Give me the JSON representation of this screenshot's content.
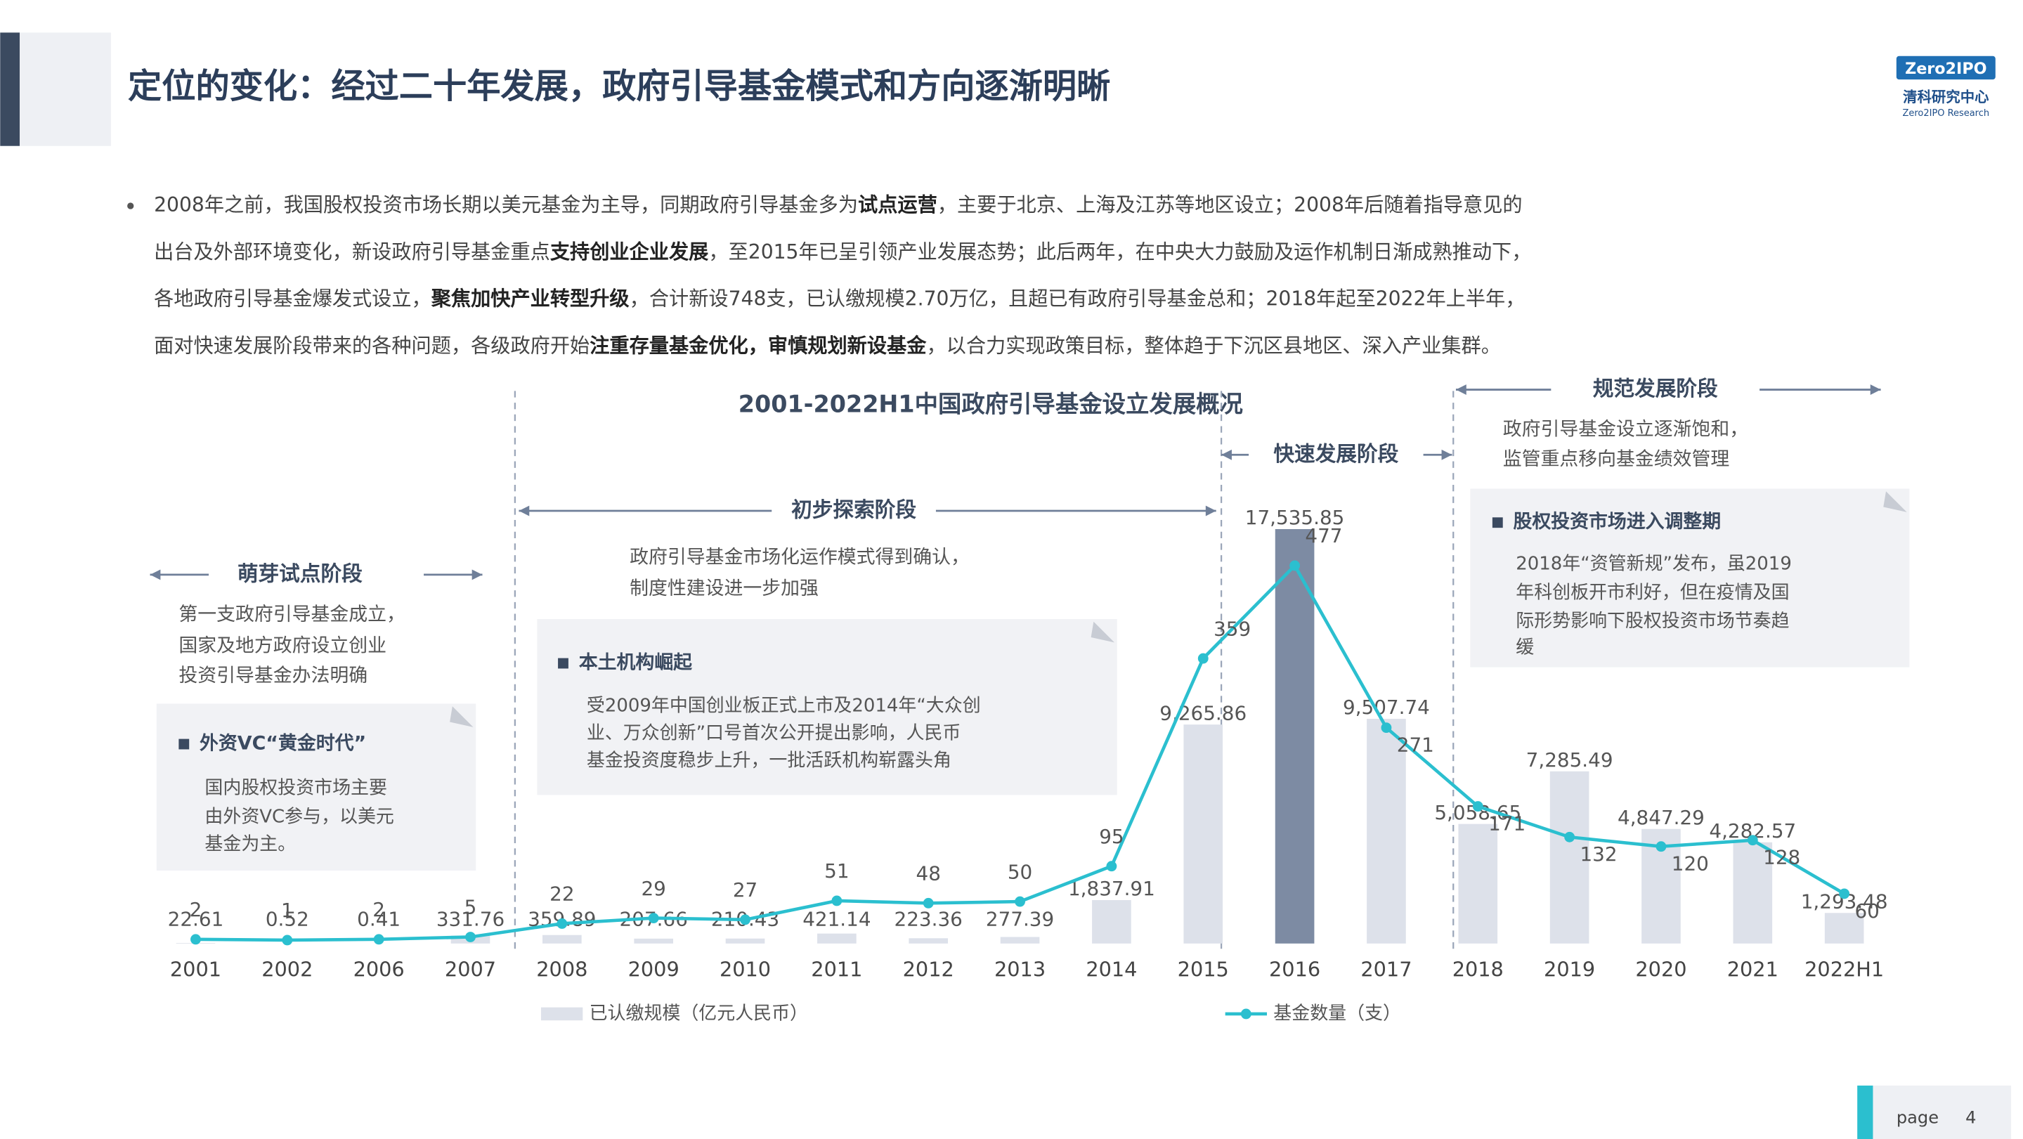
{
  "header": {
    "title": "定位的变化：经过二十年发展，政府引导基金模式和方向逐渐明晰"
  },
  "logo": {
    "brand": "Zero2IPO",
    "name": "清科研究中心",
    "sub": "Zero2IPO Research"
  },
  "bullet": {
    "lines": [
      [
        {
          "text": "2008年之前，我国股权投资市场长期以美元基金为主导，同期政府引导基金多为"
        },
        {
          "text": "试点运营",
          "bold": true
        },
        {
          "text": "，主要于北京、上海及江苏等地区设立；2008年后随着指导意见的"
        }
      ],
      [
        {
          "text": "出台及外部环境变化，新设政府引导基金重点"
        },
        {
          "text": "支持创业企业发展",
          "bold": true
        },
        {
          "text": "，至2015年已呈引领产业发展态势；此后两年，在中央大力鼓励及运作机制日渐成熟推动下，"
        }
      ],
      [
        {
          "text": "各地政府引导基金爆发式设立，"
        },
        {
          "text": "聚焦加快产业转型升级",
          "bold": true
        },
        {
          "text": "，合计新设748支，已认缴规模2.70万亿，且超已有政府引导基金总和；2018年起至2022年上半年，"
        }
      ],
      [
        {
          "text": "面对快速发展阶段带来的各种问题，各级政府开始"
        },
        {
          "text": "注重存量基金优化，审慎规划新设基金",
          "bold": true
        },
        {
          "text": "，以合力实现政策目标，整体趋于下沉区县地区、深入产业集群。"
        }
      ]
    ]
  },
  "stages": [
    {
      "label": "萌芽试点阶段",
      "desc": [
        "第一支政府引导基金成立，",
        "国家及地方政府设立创业",
        "投资引导基金办法明确"
      ],
      "box": {
        "title": "外资VC“黄金时代”",
        "lines": [
          "国内股权投资市场主要",
          "由外资VC参与，以美元",
          "基金为主。"
        ]
      }
    },
    {
      "label": "初步探索阶段",
      "desc": [
        "政府引导基金市场化运作模式得到确认，",
        "制度性建设进一步加强"
      ],
      "box": {
        "title": "本土机构崛起",
        "lines": [
          "受2009年中国创业板正式上市及2014年“大众创",
          "业、万众创新”口号首次公开提出影响，人民币",
          "基金投资度稳步上升，一批活跃机构崭露头角"
        ]
      }
    },
    {
      "label": "快速发展阶段"
    },
    {
      "label": "规范发展阶段",
      "desc": [
        "政府引导基金设立逐渐饱和，",
        "监管重点移向基金绩效管理"
      ],
      "box": {
        "title": "股权投资市场进入调整期",
        "lines": [
          "2018年“资管新规”发布，虽2019",
          "年科创板开市利好，但在疫情及国",
          "际形势影响下股权投资市场节奏趋",
          "缓"
        ]
      }
    }
  ],
  "footer": {
    "page_word": "page",
    "page_number": "4"
  },
  "chart_data": {
    "type": "bar-line",
    "title": "2001-2022H1中国政府引导基金设立发展概况",
    "categories": [
      "2001",
      "2002",
      "2006",
      "2007",
      "2008",
      "2009",
      "2010",
      "2011",
      "2012",
      "2013",
      "2014",
      "2015",
      "2016",
      "2017",
      "2018",
      "2019",
      "2020",
      "2021",
      "2022H1"
    ],
    "series": [
      {
        "name": "已认缴规模（亿元人民币）",
        "type": "bar",
        "color": "#dde1ea",
        "highlight_color": "#7d8ba3",
        "highlight_index": 12,
        "values": [
          22.61,
          0.52,
          0.41,
          331.76,
          359.89,
          207.66,
          210.43,
          421.14,
          223.36,
          277.39,
          1837.91,
          9265.86,
          17535.85,
          9507.74,
          5058.65,
          7285.49,
          4847.29,
          4282.57,
          1293.48
        ],
        "value_labels": [
          "22.61",
          "0.52",
          "0.41",
          "331.76",
          "359.89",
          "207.66",
          "210.43",
          "421.14",
          "223.36",
          "277.39",
          "1,837.91",
          "9,265.86",
          "17,535.85",
          "9,507.74",
          "5,058.65",
          "7,285.49",
          "4,847.29",
          "4,282.57",
          "1,293.48"
        ]
      },
      {
        "name": "基金数量（支）",
        "type": "line",
        "color": "#2bbfcf",
        "values": [
          2,
          1,
          2,
          5,
          22,
          29,
          27,
          51,
          48,
          50,
          95,
          359,
          477,
          271,
          171,
          132,
          120,
          128,
          60
        ]
      }
    ]
  }
}
